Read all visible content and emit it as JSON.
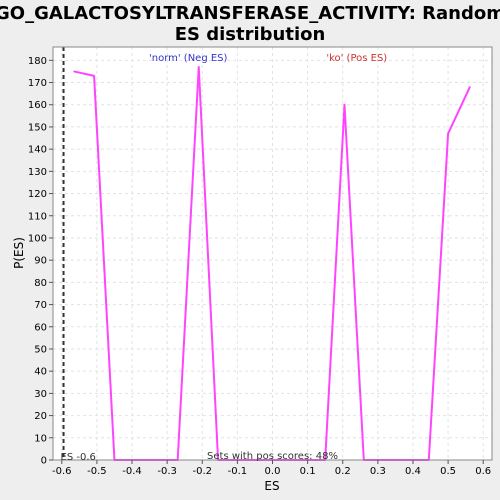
{
  "chart_data": {
    "type": "line",
    "title_line1": "GO_GALACTOSYLTRANSFERASE_ACTIVITY: Random",
    "title_line2": "ES distribution",
    "xlabel": "ES",
    "ylabel": "P(ES)",
    "xlim": [
      -0.625,
      0.625
    ],
    "ylim": [
      0,
      186
    ],
    "x_ticks": [
      -0.6,
      -0.5,
      -0.4,
      -0.3,
      -0.2,
      -0.1,
      0.0,
      0.1,
      0.2,
      0.3,
      0.4,
      0.5,
      0.6
    ],
    "x_tick_labels": [
      "-0.6",
      "-0.5",
      "-0.4",
      "-0.3",
      "-0.2",
      "-0.1",
      "0.0",
      "0.1",
      "0.2",
      "0.3",
      "0.4",
      "0.5",
      "0.6"
    ],
    "y_ticks": [
      0,
      10,
      20,
      30,
      40,
      50,
      60,
      70,
      80,
      90,
      100,
      110,
      120,
      130,
      140,
      150,
      160,
      170,
      180
    ],
    "y_tick_labels": [
      "0",
      "10",
      "20",
      "30",
      "40",
      "50",
      "60",
      "70",
      "80",
      "90",
      "100",
      "110",
      "120",
      "130",
      "140",
      "150",
      "160",
      "170",
      "180"
    ],
    "grid": true,
    "series": [
      {
        "color": "#ff44ff",
        "x": [
          -0.565,
          -0.508,
          -0.45,
          -0.27,
          -0.21,
          -0.155,
          0.15,
          0.205,
          0.26,
          0.445,
          0.5,
          0.562
        ],
        "y": [
          175,
          173,
          0,
          0,
          177,
          0,
          0,
          160,
          0,
          0,
          147,
          168
        ]
      }
    ],
    "es_line": {
      "x": -0.595,
      "label": "ES -0.6",
      "color": "#333333"
    },
    "annotations": {
      "neg": {
        "text": "'norm' (Neg ES)",
        "color": "#3333cc",
        "x": -0.24
      },
      "pos": {
        "text": "'ko' (Pos ES)",
        "color": "#cc3333",
        "x": 0.24
      },
      "bottom": {
        "text": "Sets with pos scores: 48%",
        "color": "#333333",
        "x": 0.0
      }
    }
  }
}
